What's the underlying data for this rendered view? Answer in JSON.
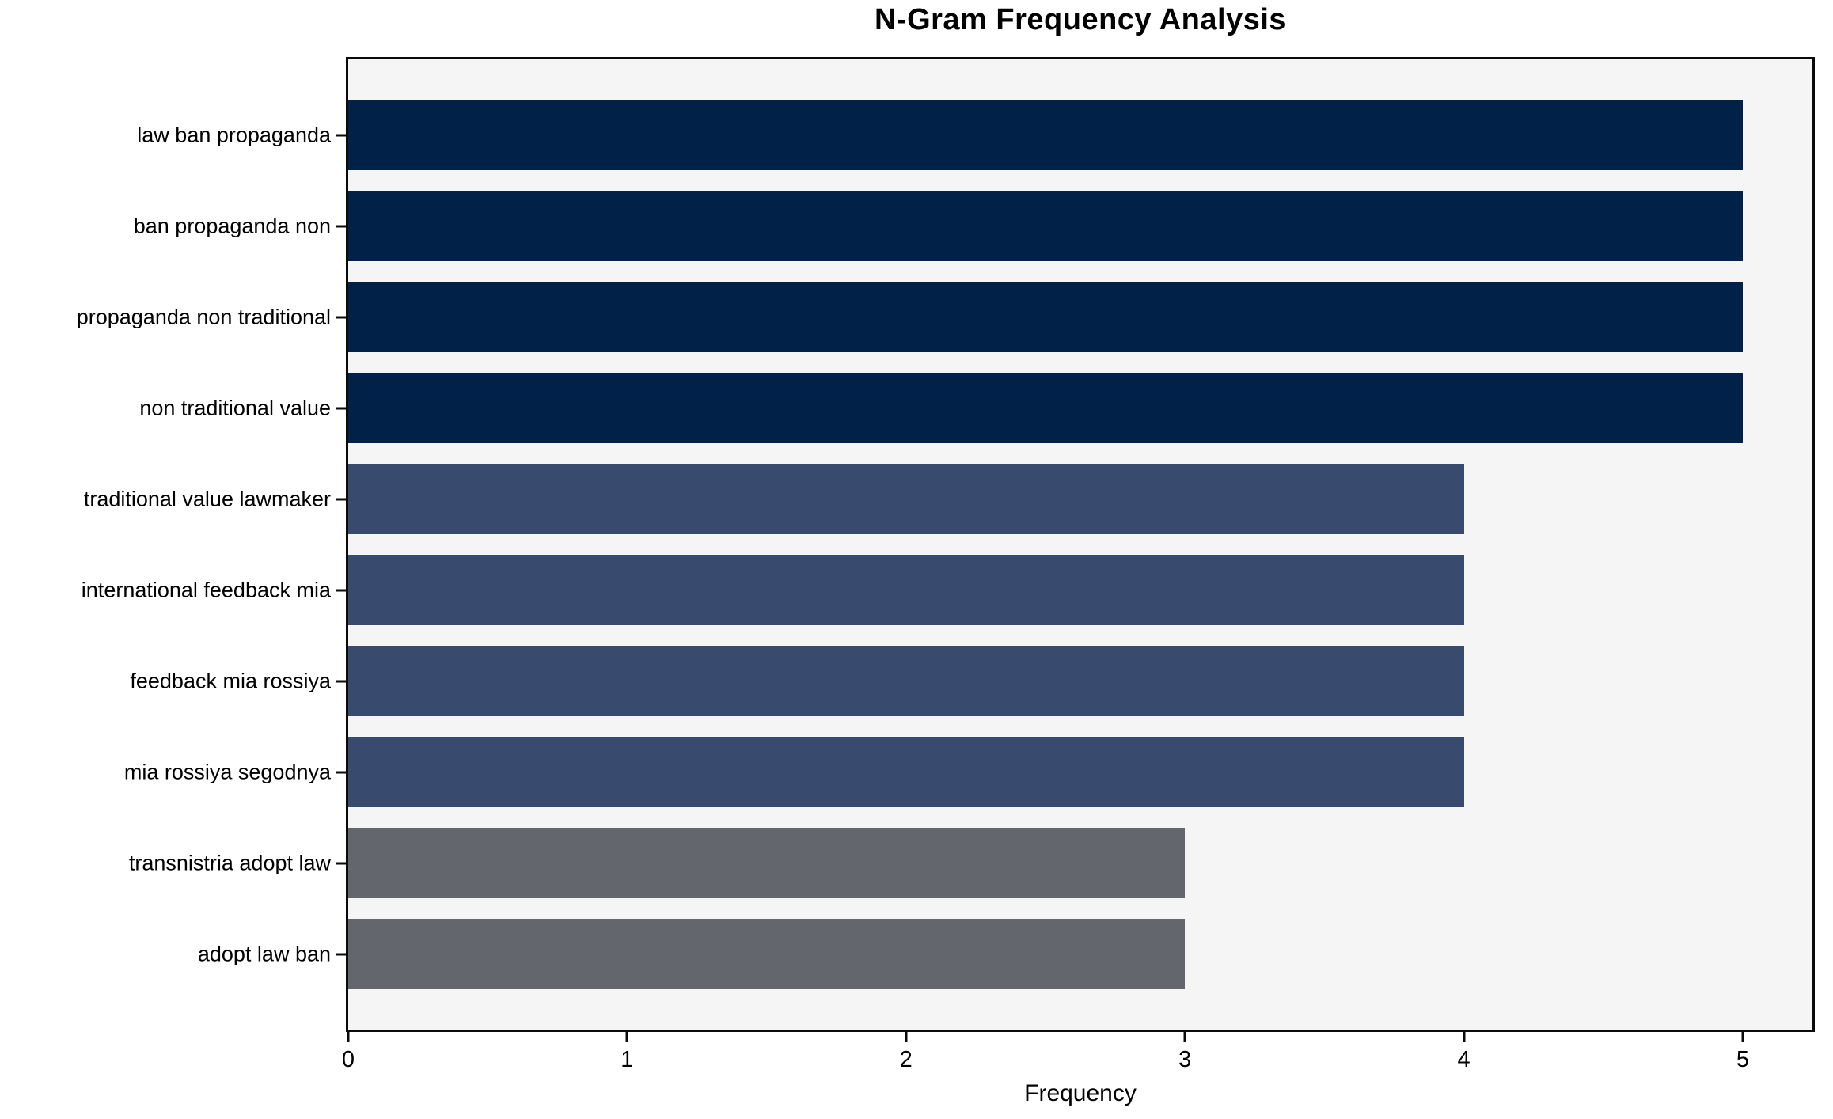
{
  "figure": {
    "background": "#ffffff"
  },
  "chart_data": {
    "type": "bar",
    "orientation": "horizontal",
    "title": "N-Gram Frequency Analysis",
    "xlabel": "Frequency",
    "ylabel": "",
    "xlim": [
      0,
      5.25
    ],
    "xticks": [
      {
        "value": 0,
        "label": "0"
      },
      {
        "value": 1,
        "label": "1"
      },
      {
        "value": 2,
        "label": "2"
      },
      {
        "value": 3,
        "label": "3"
      },
      {
        "value": 4,
        "label": "4"
      },
      {
        "value": 5,
        "label": "5"
      }
    ],
    "grid": false,
    "legend": "none",
    "plot_background": "#f5f5f6",
    "spine_color": "#0a0a0a",
    "categories": [
      "law ban propaganda",
      "ban propaganda non",
      "propaganda non traditional",
      "non traditional value",
      "traditional value lawmaker",
      "international feedback mia",
      "feedback mia rossiya",
      "mia rossiya segodnya",
      "transnistria adopt law",
      "adopt law ban"
    ],
    "values": [
      5,
      5,
      5,
      5,
      4,
      4,
      4,
      4,
      3,
      3
    ],
    "bar_colors": [
      "#022149",
      "#022149",
      "#022149",
      "#022149",
      "#394a6f",
      "#394a6f",
      "#394a6f",
      "#394a6f",
      "#64666d",
      "#64666d"
    ]
  }
}
